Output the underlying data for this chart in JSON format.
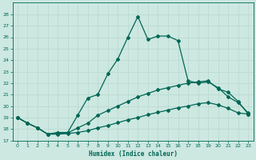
{
  "xlabel": "Humidex (Indice chaleur)",
  "background_color": "#cce8e0",
  "line_color": "#006655",
  "grid_color": "#b8d8d0",
  "xlim": [
    -0.5,
    23.5
  ],
  "ylim": [
    17,
    29
  ],
  "yticks": [
    17,
    18,
    19,
    20,
    21,
    22,
    23,
    24,
    25,
    26,
    27,
    28
  ],
  "xticks": [
    0,
    1,
    2,
    3,
    4,
    5,
    6,
    7,
    8,
    9,
    10,
    11,
    12,
    13,
    14,
    15,
    16,
    17,
    18,
    19,
    20,
    21,
    22,
    23
  ],
  "xtick_labels": [
    "0",
    "1",
    "2",
    "3",
    "4",
    "5",
    "6",
    "7",
    "8",
    "9",
    "10",
    "11",
    "12",
    "13",
    "14",
    "15",
    "16",
    "17",
    "18",
    "19",
    "20",
    "21",
    "22",
    "23"
  ],
  "line_jagged_x": [
    0,
    1,
    2,
    3,
    4,
    5,
    6,
    7,
    8,
    9,
    10,
    11,
    12,
    13,
    14,
    15,
    16,
    17,
    18,
    19,
    20,
    21,
    22,
    23
  ],
  "line_jagged_y": [
    19.0,
    18.5,
    18.1,
    17.55,
    17.7,
    17.7,
    19.2,
    20.7,
    21.0,
    22.8,
    24.1,
    26.0,
    27.8,
    25.8,
    26.1,
    26.1,
    25.7,
    22.2,
    22.0,
    22.1,
    21.6,
    20.8,
    20.3,
    19.4
  ],
  "line_mid_x": [
    0,
    1,
    2,
    3,
    4,
    5,
    6,
    7,
    8,
    9,
    10,
    11,
    12,
    13,
    14,
    15,
    16,
    17,
    18,
    19,
    20,
    21,
    22,
    23
  ],
  "line_mid_y": [
    19.0,
    18.5,
    18.1,
    17.55,
    17.65,
    17.65,
    18.1,
    18.5,
    19.2,
    19.6,
    20.0,
    20.4,
    20.8,
    21.1,
    21.4,
    21.6,
    21.8,
    22.0,
    22.1,
    22.2,
    21.5,
    21.2,
    20.4,
    19.3
  ],
  "line_low_x": [
    0,
    1,
    2,
    3,
    4,
    5,
    6,
    7,
    8,
    9,
    10,
    11,
    12,
    13,
    14,
    15,
    16,
    17,
    18,
    19,
    20,
    21,
    22,
    23
  ],
  "line_low_y": [
    19.0,
    18.5,
    18.1,
    17.55,
    17.55,
    17.6,
    17.7,
    17.85,
    18.1,
    18.3,
    18.55,
    18.8,
    19.0,
    19.25,
    19.45,
    19.65,
    19.85,
    20.0,
    20.2,
    20.3,
    20.1,
    19.8,
    19.4,
    19.3
  ],
  "markersize": 2.0,
  "linewidth": 0.9
}
